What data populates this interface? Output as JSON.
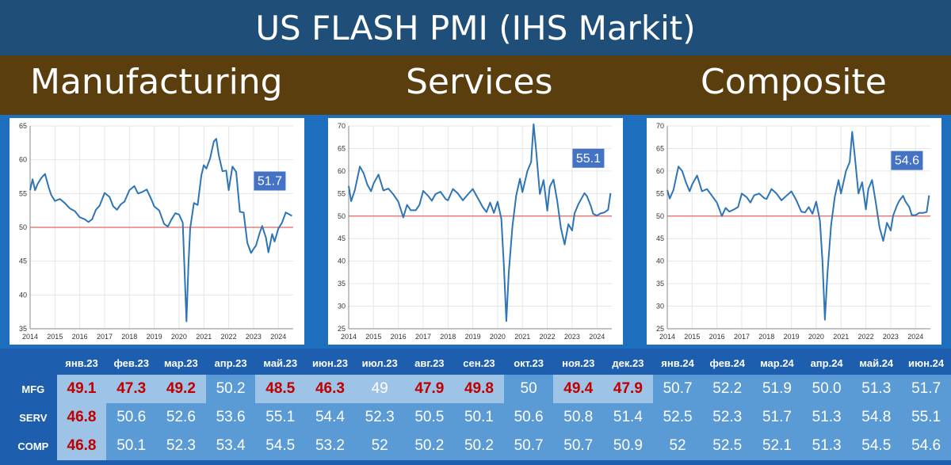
{
  "title": "US FLASH PMI (IHS Markit)",
  "sections": [
    "Manufacturing",
    "Services",
    "Composite"
  ],
  "colors": {
    "line": "#2e75b6",
    "ref_line": "#e06666",
    "badge": "#4472c4",
    "red_text": "#c00000"
  },
  "chart_data": [
    {
      "type": "line",
      "title": "Manufacturing",
      "ylim": [
        35,
        65
      ],
      "yticks": [
        35,
        40,
        45,
        50,
        55,
        60,
        65
      ],
      "xlim": [
        2014,
        2024.6
      ],
      "xticks": [
        "2014",
        "2015",
        "2016",
        "2017",
        "2018",
        "2019",
        "2020",
        "2021",
        "2022",
        "2023",
        "2024"
      ],
      "reference_line": 50,
      "last_value_label": "51.7",
      "series": [
        {
          "x": [
            2014.0,
            2014.1,
            2014.2,
            2014.3,
            2014.45,
            2014.6,
            2014.75,
            2014.85,
            2015.0,
            2015.2,
            2015.4,
            2015.6,
            2015.8,
            2016.0,
            2016.2,
            2016.35,
            2016.5,
            2016.65,
            2016.8,
            2017.0,
            2017.2,
            2017.35,
            2017.5,
            2017.65,
            2017.8,
            2018.0,
            2018.2,
            2018.35,
            2018.5,
            2018.7,
            2018.9,
            2019.0,
            2019.2,
            2019.4,
            2019.55,
            2019.7,
            2019.85,
            2020.0,
            2020.15,
            2020.3,
            2020.38,
            2020.45,
            2020.6,
            2020.75,
            2020.9,
            2021.0,
            2021.1,
            2021.25,
            2021.4,
            2021.5,
            2021.6,
            2021.75,
            2021.9,
            2022.0,
            2022.15,
            2022.3,
            2022.45,
            2022.6,
            2022.75,
            2022.9,
            2023.0,
            2023.1,
            2023.25,
            2023.35,
            2023.5,
            2023.6,
            2023.75,
            2023.85,
            2024.0,
            2024.15,
            2024.3,
            2024.45,
            2024.55
          ],
          "y": [
            55.5,
            57.1,
            55.5,
            56.4,
            57.3,
            57.9,
            55.9,
            54.8,
            53.9,
            54.2,
            53.6,
            52.8,
            52.4,
            51.5,
            51.2,
            50.8,
            51.2,
            52.6,
            53.2,
            55.1,
            54.5,
            53.1,
            52.6,
            53.4,
            53.8,
            55.5,
            56.1,
            55.0,
            55.2,
            55.6,
            54.0,
            53.1,
            52.5,
            50.5,
            50.1,
            51.2,
            52.1,
            51.9,
            50.7,
            36.1,
            44.5,
            49.9,
            53.6,
            53.3,
            57.7,
            59.2,
            58.7,
            60.2,
            62.7,
            63.1,
            60.7,
            58.3,
            58.4,
            55.5,
            59.0,
            58.2,
            52.3,
            52.2,
            47.7,
            46.2,
            46.8,
            47.3,
            49.2,
            50.2,
            48.5,
            46.3,
            49.0,
            47.9,
            49.8,
            50.7,
            52.2,
            51.9,
            51.7
          ]
        }
      ]
    },
    {
      "type": "line",
      "title": "Services",
      "ylim": [
        25,
        70
      ],
      "yticks": [
        25,
        30,
        35,
        40,
        45,
        50,
        55,
        60,
        65,
        70
      ],
      "xlim": [
        2014,
        2024.6
      ],
      "xticks": [
        "2014",
        "2015",
        "2016",
        "2017",
        "2018",
        "2019",
        "2020",
        "2021",
        "2022",
        "2023",
        "2024"
      ],
      "reference_line": 50,
      "last_value_label": "55.1",
      "series": [
        {
          "x": [
            2014.0,
            2014.1,
            2014.25,
            2014.45,
            2014.6,
            2014.75,
            2014.9,
            2015.0,
            2015.2,
            2015.4,
            2015.6,
            2015.8,
            2016.0,
            2016.2,
            2016.35,
            2016.5,
            2016.7,
            2016.85,
            2017.0,
            2017.2,
            2017.35,
            2017.5,
            2017.7,
            2017.9,
            2018.0,
            2018.2,
            2018.4,
            2018.6,
            2018.8,
            2019.0,
            2019.2,
            2019.4,
            2019.55,
            2019.7,
            2019.85,
            2020.0,
            2020.15,
            2020.25,
            2020.35,
            2020.45,
            2020.6,
            2020.75,
            2020.9,
            2021.0,
            2021.2,
            2021.35,
            2021.45,
            2021.55,
            2021.7,
            2021.85,
            2022.0,
            2022.1,
            2022.25,
            2022.4,
            2022.55,
            2022.7,
            2022.85,
            2023.0,
            2023.1,
            2023.25,
            2023.35,
            2023.5,
            2023.6,
            2023.75,
            2023.85,
            2024.0,
            2024.15,
            2024.3,
            2024.45,
            2024.55
          ],
          "y": [
            56.7,
            53.3,
            55.8,
            61.0,
            59.5,
            57.0,
            55.5,
            57.2,
            59.2,
            55.7,
            56.1,
            54.8,
            53.2,
            49.7,
            52.5,
            51.3,
            51.3,
            52.5,
            55.6,
            54.5,
            53.4,
            54.9,
            55.4,
            53.8,
            53.5,
            56.0,
            55.0,
            53.5,
            54.8,
            56.0,
            54.0,
            52.0,
            50.9,
            53.0,
            50.7,
            53.2,
            49.4,
            39.1,
            26.7,
            37.5,
            47.9,
            54.6,
            58.3,
            55.3,
            60.0,
            62.0,
            70.4,
            64.6,
            54.9,
            58.0,
            51.2,
            56.5,
            58.1,
            53.4,
            47.3,
            43.7,
            48.2,
            46.8,
            50.6,
            52.6,
            53.6,
            55.1,
            54.4,
            52.3,
            50.5,
            50.1,
            50.6,
            50.8,
            51.4,
            55.1
          ]
        }
      ]
    },
    {
      "type": "line",
      "title": "Composite",
      "ylim": [
        25,
        70
      ],
      "yticks": [
        25,
        30,
        35,
        40,
        45,
        50,
        55,
        60,
        65,
        70
      ],
      "xlim": [
        2014,
        2024.6
      ],
      "xticks": [
        "2014",
        "2015",
        "2016",
        "2017",
        "2018",
        "2019",
        "2020",
        "2021",
        "2022",
        "2023",
        "2024"
      ],
      "reference_line": 50,
      "last_value_label": "54.6",
      "series": [
        {
          "x": [
            2014.0,
            2014.1,
            2014.25,
            2014.45,
            2014.6,
            2014.75,
            2014.9,
            2015.0,
            2015.2,
            2015.4,
            2015.6,
            2015.8,
            2016.0,
            2016.2,
            2016.35,
            2016.5,
            2016.7,
            2016.85,
            2017.0,
            2017.2,
            2017.35,
            2017.5,
            2017.7,
            2017.9,
            2018.0,
            2018.2,
            2018.4,
            2018.6,
            2018.8,
            2019.0,
            2019.2,
            2019.4,
            2019.55,
            2019.7,
            2019.85,
            2020.0,
            2020.15,
            2020.25,
            2020.35,
            2020.45,
            2020.6,
            2020.75,
            2020.9,
            2021.0,
            2021.2,
            2021.35,
            2021.45,
            2021.55,
            2021.7,
            2021.85,
            2022.0,
            2022.1,
            2022.25,
            2022.4,
            2022.55,
            2022.7,
            2022.85,
            2023.0,
            2023.1,
            2023.25,
            2023.35,
            2023.5,
            2023.6,
            2023.75,
            2023.85,
            2024.0,
            2024.15,
            2024.3,
            2024.45,
            2024.55
          ],
          "y": [
            55.8,
            53.9,
            55.8,
            61.0,
            60.0,
            57.5,
            55.5,
            57.0,
            59.0,
            55.5,
            56.0,
            54.5,
            53.0,
            50.0,
            51.8,
            51.0,
            51.5,
            52.0,
            55.0,
            54.2,
            53.0,
            54.6,
            55.0,
            54.0,
            53.8,
            56.0,
            55.0,
            53.5,
            54.5,
            55.5,
            53.5,
            51.0,
            50.8,
            52.0,
            50.5,
            53.2,
            49.0,
            40.0,
            27.0,
            37.0,
            48.0,
            54.3,
            58.0,
            55.0,
            60.0,
            62.0,
            68.7,
            63.5,
            55.0,
            57.5,
            51.5,
            56.0,
            58.0,
            53.0,
            47.5,
            44.5,
            48.5,
            46.8,
            50.1,
            52.3,
            53.4,
            54.5,
            53.2,
            52.0,
            50.2,
            50.2,
            50.7,
            50.7,
            50.9,
            54.6
          ]
        }
      ]
    }
  ],
  "table": {
    "columns": [
      "янв.23",
      "фев.23",
      "мар.23",
      "апр.23",
      "май.23",
      "июн.23",
      "июл.23",
      "авг.23",
      "сен.23",
      "окт.23",
      "ноя.23",
      "дек.23",
      "янв.24",
      "фев.24",
      "мар.24",
      "апр.24",
      "май.24",
      "июн.24"
    ],
    "rows": [
      {
        "label": "MFG",
        "values": [
          "49.1",
          "47.3",
          "49.2",
          "50.2",
          "48.5",
          "46.3",
          "49",
          "47.9",
          "49.8",
          "50",
          "49.4",
          "47.9",
          "50.7",
          "52.2",
          "51.9",
          "50.0",
          "51.3",
          "51.7"
        ]
      },
      {
        "label": "SERV",
        "values": [
          "46.8",
          "50.6",
          "52.6",
          "53.6",
          "55.1",
          "54.4",
          "52.3",
          "50.5",
          "50.1",
          "50.6",
          "50.8",
          "51.4",
          "52.5",
          "52.3",
          "51.7",
          "51.3",
          "54.8",
          "55.1"
        ]
      },
      {
        "label": "COMP",
        "values": [
          "46.8",
          "50.1",
          "52.3",
          "53.4",
          "54.5",
          "53.2",
          "52",
          "50.2",
          "50.2",
          "50.7",
          "50.7",
          "50.9",
          "52",
          "52.5",
          "52.1",
          "51.3",
          "54.5",
          "54.6"
        ]
      }
    ]
  }
}
